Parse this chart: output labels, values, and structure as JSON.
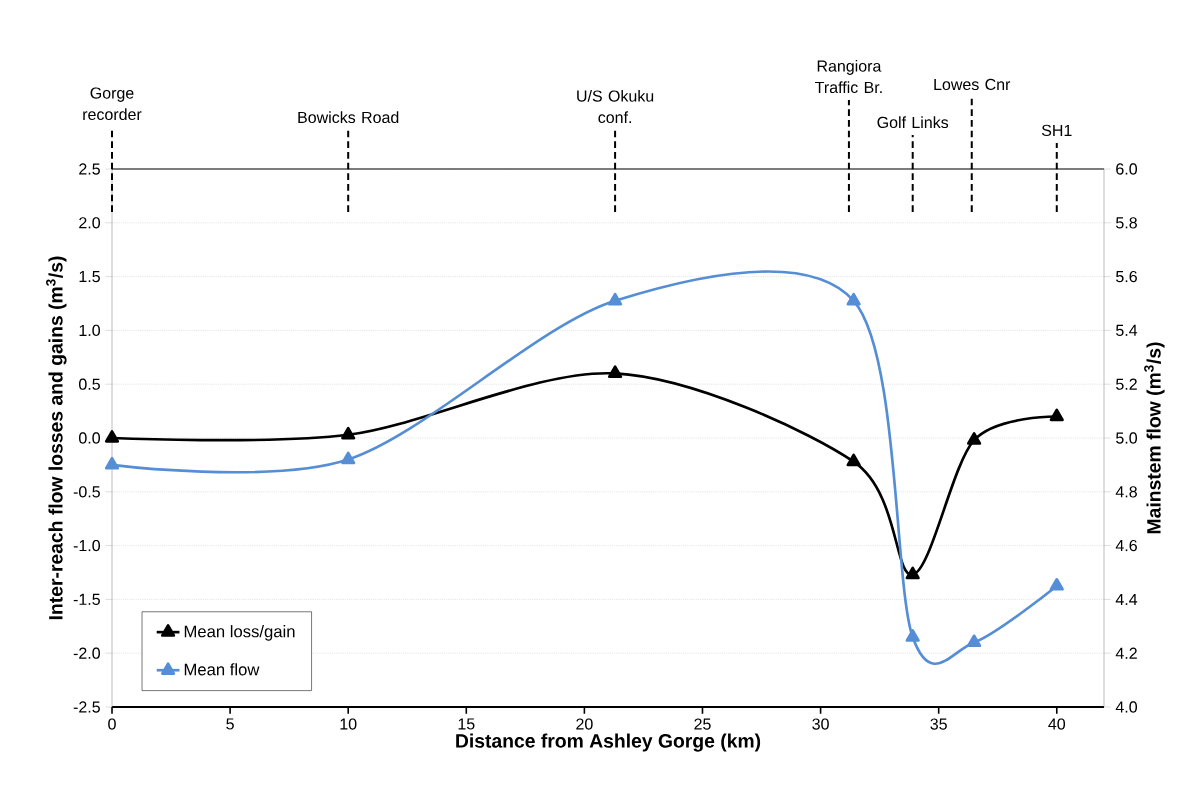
{
  "chart_data": {
    "type": "line",
    "xlabel": "Distance from Ashley Gorge (km)",
    "ylabel": "Inter-reach flow losses and gains (m$^{3}$/s)",
    "y2label": "Mainstem flow (m$^{3}$/s)",
    "x": [
      0,
      10,
      21.3,
      31.4,
      33.9,
      36.5,
      40
    ],
    "series": [
      {
        "name": "Mean loss/gain",
        "color": "#000000",
        "values": [
          0.0,
          0.03,
          0.6,
          -0.22,
          -1.27,
          -0.02,
          0.2
        ]
      },
      {
        "name": "Mean flow",
        "color": "#558ed5",
        "axis": "y2",
        "values": [
          4.9,
          4.92,
          5.51,
          5.51,
          4.26,
          4.24,
          4.45
        ]
      }
    ],
    "xlim": [
      0,
      42
    ],
    "xticks": [
      0,
      5,
      10,
      15,
      20,
      25,
      30,
      35,
      40
    ],
    "ylim": [
      -2.5,
      2.5
    ],
    "yticks": [
      {
        "value": -2.5,
        "label": "-2.5"
      },
      {
        "value": -2.0,
        "label": "-2.0"
      },
      {
        "value": -1.5,
        "label": "-1.5"
      },
      {
        "value": -1.0,
        "label": "-1.0"
      },
      {
        "value": -0.5,
        "label": "-0.5"
      },
      {
        "value": 0.0,
        "label": "0.0"
      },
      {
        "value": 0.5,
        "label": "0.5"
      },
      {
        "value": 1.0,
        "label": "1.0"
      },
      {
        "value": 1.5,
        "label": "1.5"
      },
      {
        "value": 2.0,
        "label": "2.0"
      },
      {
        "value": 2.5,
        "label": "2.5"
      }
    ],
    "y2lim": [
      4.0,
      6.0
    ],
    "y2ticks": [
      {
        "value": 4.0,
        "label": "4.0"
      },
      {
        "value": 4.2,
        "label": "4.2"
      },
      {
        "value": 4.4,
        "label": "4.4"
      },
      {
        "value": 4.6,
        "label": "4.6"
      },
      {
        "value": 4.8,
        "label": "4.8"
      },
      {
        "value": 5.0,
        "label": "5.0"
      },
      {
        "value": 5.2,
        "label": "5.2"
      },
      {
        "value": 5.4,
        "label": "5.4"
      },
      {
        "value": 5.6,
        "label": "5.6"
      },
      {
        "value": 5.8,
        "label": "5.8"
      },
      {
        "value": 6.0,
        "label": "6.0"
      }
    ],
    "ref_lines": [
      {
        "axis": "x",
        "value": 0,
        "label": "Gorge recorder",
        "color": "#000000",
        "line_style": "dashed"
      },
      {
        "axis": "x",
        "value": 10,
        "label": "Bowicks Road",
        "color": "#000000",
        "line_style": "dashed"
      },
      {
        "axis": "x",
        "value": 21.3,
        "label": "U/S Okuku conf.",
        "color": "#000000",
        "line_style": "dashed"
      },
      {
        "axis": "x",
        "value": 31.2,
        "label": "Rangiora Traffic  Br.",
        "color": "#000000",
        "line_style": "dashed"
      },
      {
        "axis": "x",
        "value": 33.9,
        "label": "Golf Links",
        "color": "#000000",
        "line_style": "dashed"
      },
      {
        "axis": "x",
        "value": 36.4,
        "label": "Lowes Cnr",
        "color": "#000000",
        "line_style": "dashed"
      },
      {
        "axis": "x",
        "value": 40,
        "label": "SH1",
        "color": "#000000",
        "line_style": "dashed"
      }
    ],
    "grid": "y",
    "legend": "bottom left",
    "marker": "triangle",
    "line_style": "solid"
  }
}
